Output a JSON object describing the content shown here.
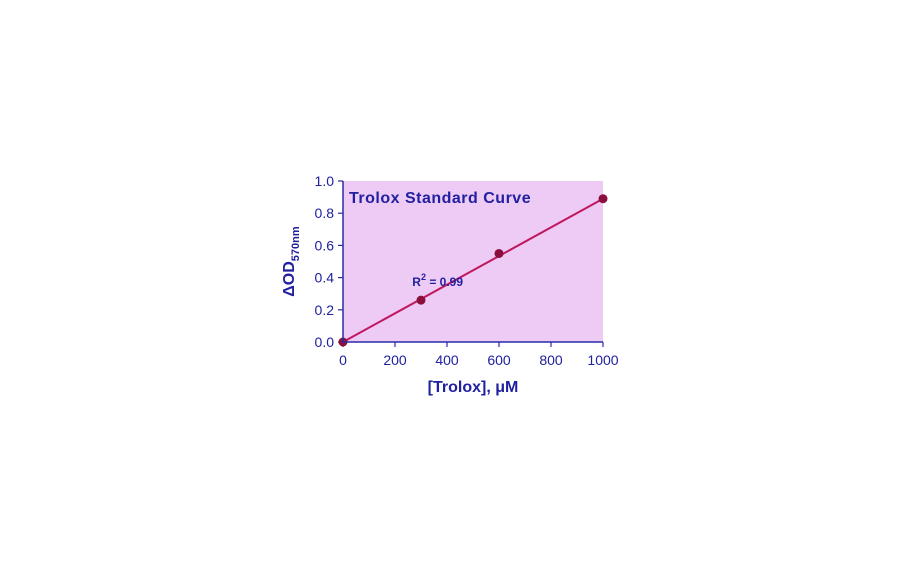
{
  "colors": {
    "plot_background": "#eecbf5",
    "axis": "#2a2aa8",
    "text": "#2020a0",
    "line": "#c0185e",
    "marker": "#8b0f3c"
  },
  "chart_data": {
    "type": "scatter",
    "title": "Trolox Standard Curve",
    "xlabel": "[Trolox], μM",
    "ylabel": {
      "main": "ΔOD",
      "subscript": "570nm"
    },
    "xlim": [
      0,
      1000
    ],
    "ylim": [
      0,
      1.0
    ],
    "x_ticks": [
      0,
      200,
      400,
      600,
      800,
      1000
    ],
    "x_tick_labels": [
      "0",
      "200",
      "400",
      "600",
      "800",
      "1000"
    ],
    "y_ticks": [
      0,
      0.2,
      0.4,
      0.6,
      0.8,
      1.0
    ],
    "y_tick_labels": [
      "0.0",
      "0.2",
      "0.4",
      "0.6",
      "0.8",
      "1.0"
    ],
    "grid": false,
    "legend": "none",
    "series": [
      {
        "x": [
          0,
          300,
          600,
          1000
        ],
        "y": [
          0.0,
          0.26,
          0.55,
          0.89
        ]
      }
    ],
    "fit_line": {
      "x": [
        0,
        1000
      ],
      "y": [
        0.0,
        0.89
      ]
    },
    "annotation": {
      "base": "R",
      "superscript": "2",
      "rest": " = 0.99",
      "at": {
        "x": 555,
        "y": 0.38
      }
    }
  }
}
